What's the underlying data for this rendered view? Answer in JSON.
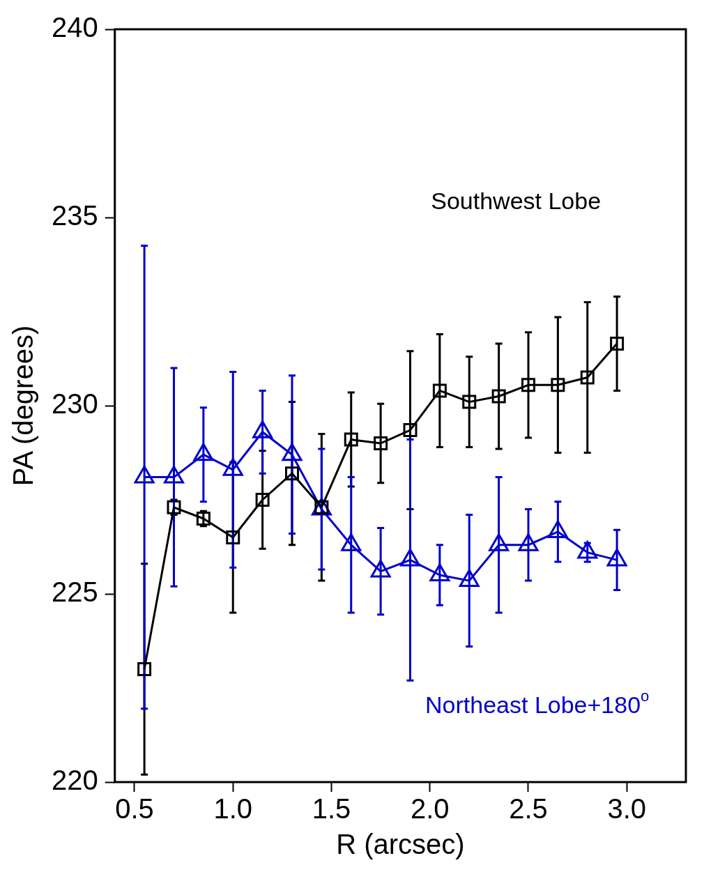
{
  "chart_data": {
    "type": "line",
    "xlabel": "R (arcsec)",
    "ylabel": "PA (degrees)",
    "x": [
      0.55,
      0.7,
      0.85,
      1.0,
      1.15,
      1.3,
      1.45,
      1.6,
      1.75,
      1.9,
      2.05,
      2.2,
      2.35,
      2.5,
      2.65,
      2.8,
      2.95
    ],
    "series": [
      {
        "name": "Southwest Lobe",
        "color": "#000000",
        "marker": "square",
        "values": [
          223.0,
          227.3,
          227.0,
          226.5,
          227.5,
          228.2,
          227.3,
          229.1,
          229.0,
          229.35,
          230.4,
          230.1,
          230.25,
          230.55,
          230.55,
          230.75,
          231.65
        ],
        "errors": [
          2.8,
          0.2,
          0.2,
          2.0,
          1.3,
          1.9,
          1.95,
          1.25,
          1.05,
          2.1,
          1.5,
          1.2,
          1.4,
          1.4,
          1.8,
          2.0,
          1.25
        ]
      },
      {
        "name": "Northeast Lobe+180$^{o}$",
        "color": "#0000cc",
        "marker": "triangle",
        "values": [
          228.1,
          228.1,
          228.7,
          228.3,
          229.3,
          228.7,
          227.25,
          226.3,
          225.6,
          225.9,
          225.5,
          225.35,
          226.3,
          226.3,
          226.65,
          226.1,
          225.9
        ],
        "errors": [
          6.15,
          2.9,
          1.25,
          2.6,
          1.1,
          2.1,
          1.6,
          1.8,
          1.15,
          3.2,
          0.8,
          1.75,
          1.8,
          0.95,
          0.8,
          0.25,
          0.8
        ]
      }
    ],
    "xlim": [
      0.4,
      3.3
    ],
    "xticks": [
      0.5,
      {
        "value": 1.0,
        "label": "1.0"
      },
      1.5,
      {
        "value": 2.0,
        "label": "2.0"
      },
      2.5,
      {
        "value": 3.0,
        "label": "3.0"
      }
    ],
    "ylim": [
      220,
      240
    ],
    "yticks": [
      220,
      225,
      230,
      235,
      240
    ],
    "grid": false,
    "legend": false,
    "line_style": "solid"
  }
}
